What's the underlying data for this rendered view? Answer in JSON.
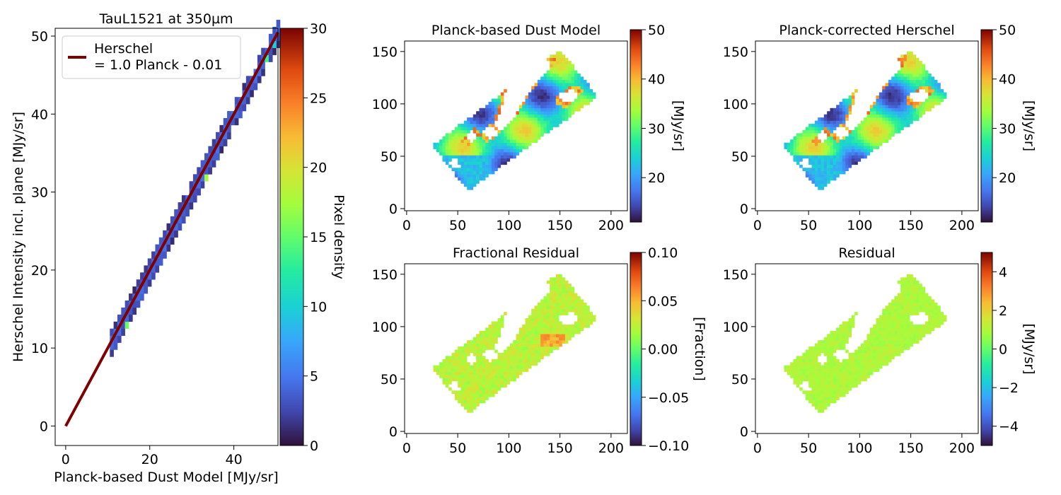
{
  "chart_data": [
    {
      "type": "heatmap",
      "title": "TauL1521 at 350µm",
      "xlabel": "Planck-based Dust Model [MJy/sr]",
      "ylabel": "Herschel Intensity incl. plane [MJy/sr]",
      "xlim": [
        -2.5,
        50.5
      ],
      "ylim": [
        -2.5,
        51
      ],
      "xticks": [
        "0",
        "20",
        "40"
      ],
      "xtick_values": [
        0,
        20,
        40
      ],
      "yticks": [
        "0",
        "10",
        "20",
        "30",
        "40",
        "50"
      ],
      "ytick_values": [
        0,
        10,
        20,
        30,
        40,
        50
      ],
      "legend": {
        "location": "top-left",
        "entries": [
          {
            "label": "Herschel\n= 1.0 Planck - 0.01",
            "color": "#7f0000"
          }
        ]
      },
      "fit_line": {
        "slope": 1.0,
        "intercept": -0.01,
        "x": [
          0,
          50.5
        ]
      },
      "density_band": {
        "x_range": [
          10.5,
          50.5
        ],
        "typical_density": 3,
        "peak_density": 30
      },
      "colorbar": {
        "label": "Pixel density",
        "range": [
          0,
          30
        ],
        "ticks": [
          "0",
          "5",
          "10",
          "15",
          "20",
          "25",
          "30"
        ],
        "tick_values": [
          0,
          5,
          10,
          15,
          20,
          25,
          30
        ],
        "colormap": "turbo"
      }
    },
    {
      "type": "heatmap",
      "title": "Planck-based Dust Model",
      "xlim": [
        -2,
        216
      ],
      "ylim": [
        -2,
        160
      ],
      "xticks": [
        "0",
        "50",
        "100",
        "150",
        "200"
      ],
      "xtick_values": [
        0,
        50,
        100,
        150,
        200
      ],
      "yticks": [
        "0",
        "50",
        "100",
        "150"
      ],
      "ytick_values": [
        0,
        50,
        100,
        150
      ],
      "map_region": {
        "corners_xy": [
          [
            25,
            60
          ],
          [
            60,
            17
          ],
          [
            187,
            107
          ],
          [
            150,
            152
          ]
        ]
      },
      "colorbar": {
        "label": "[MJy/sr]",
        "range": [
          11,
          50
        ],
        "ticks": [
          "20",
          "30",
          "40",
          "50"
        ],
        "tick_values": [
          20,
          30,
          40,
          50
        ],
        "colormap": "turbo"
      }
    },
    {
      "type": "heatmap",
      "title": "Planck-corrected Herschel",
      "xlim": [
        -2,
        216
      ],
      "ylim": [
        -2,
        160
      ],
      "xticks": [
        "0",
        "50",
        "100",
        "150",
        "200"
      ],
      "xtick_values": [
        0,
        50,
        100,
        150,
        200
      ],
      "yticks": [
        "0",
        "50",
        "100",
        "150"
      ],
      "ytick_values": [
        0,
        50,
        100,
        150
      ],
      "map_region": {
        "corners_xy": [
          [
            25,
            60
          ],
          [
            60,
            17
          ],
          [
            187,
            107
          ],
          [
            150,
            152
          ]
        ]
      },
      "colorbar": {
        "label": "[MJy/sr]",
        "range": [
          11,
          50
        ],
        "ticks": [
          "20",
          "30",
          "40",
          "50"
        ],
        "tick_values": [
          20,
          30,
          40,
          50
        ],
        "colormap": "turbo"
      }
    },
    {
      "type": "heatmap",
      "title": "Fractional Residual",
      "xlim": [
        -2,
        216
      ],
      "ylim": [
        -2,
        160
      ],
      "xticks": [
        "0",
        "50",
        "100",
        "150",
        "200"
      ],
      "xtick_values": [
        0,
        50,
        100,
        150,
        200
      ],
      "yticks": [
        "0",
        "50",
        "100",
        "150"
      ],
      "ytick_values": [
        0,
        50,
        100,
        150
      ],
      "map_region": {
        "corners_xy": [
          [
            25,
            60
          ],
          [
            60,
            17
          ],
          [
            187,
            107
          ],
          [
            150,
            152
          ]
        ]
      },
      "colorbar": {
        "label": "[Fraction]",
        "range": [
          -0.1,
          0.1
        ],
        "ticks": [
          "0.10",
          "0.05",
          "0.00",
          "−0.05",
          "−0.10"
        ],
        "tick_values": [
          0.1,
          0.05,
          0.0,
          -0.05,
          -0.1
        ],
        "colormap": "turbo"
      }
    },
    {
      "type": "heatmap",
      "title": "Residual",
      "xlim": [
        -2,
        216
      ],
      "ylim": [
        -2,
        160
      ],
      "xticks": [
        "0",
        "50",
        "100",
        "150",
        "200"
      ],
      "xtick_values": [
        0,
        50,
        100,
        150,
        200
      ],
      "yticks": [
        "0",
        "50",
        "100",
        "150"
      ],
      "ytick_values": [
        0,
        50,
        100,
        150
      ],
      "map_region": {
        "corners_xy": [
          [
            25,
            60
          ],
          [
            60,
            17
          ],
          [
            187,
            107
          ],
          [
            150,
            152
          ]
        ]
      },
      "colorbar": {
        "label": "[MJy/sr]",
        "range": [
          -5,
          5
        ],
        "ticks": [
          "4",
          "2",
          "0",
          "−2",
          "−4"
        ],
        "tick_values": [
          4,
          2,
          0,
          -2,
          -4
        ],
        "colormap": "turbo"
      }
    }
  ]
}
